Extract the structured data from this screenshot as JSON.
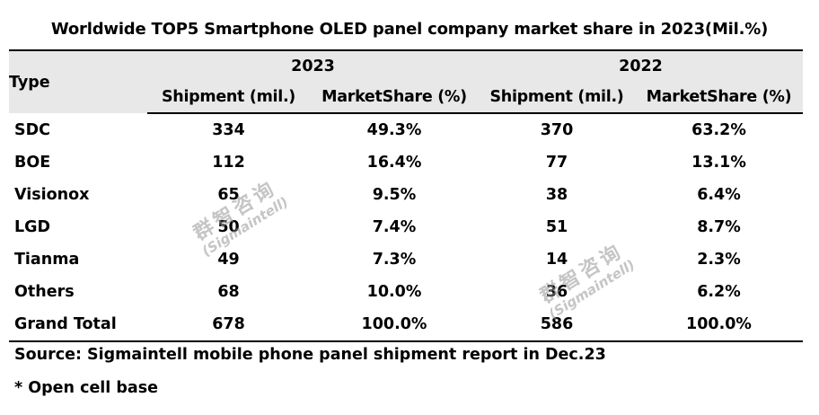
{
  "chart_data": {
    "type": "table",
    "title": "Worldwide TOP5 Smartphone OLED panel company market share in 2023(Mil.%)",
    "row_header": "Type",
    "years": [
      "2023",
      "2022"
    ],
    "subcolumns": [
      "Shipment (mil.)",
      "MarketShare (%)"
    ],
    "rows": [
      {
        "type": "SDC",
        "ship_2023": "334",
        "share_2023": "49.3%",
        "ship_2022": "370",
        "share_2022": "63.2%"
      },
      {
        "type": "BOE",
        "ship_2023": "112",
        "share_2023": "16.4%",
        "ship_2022": "77",
        "share_2022": "13.1%"
      },
      {
        "type": "Visionox",
        "ship_2023": "65",
        "share_2023": "9.5%",
        "ship_2022": "38",
        "share_2022": "6.4%"
      },
      {
        "type": "LGD",
        "ship_2023": "50",
        "share_2023": "7.4%",
        "ship_2022": "51",
        "share_2022": "8.7%"
      },
      {
        "type": "Tianma",
        "ship_2023": "49",
        "share_2023": "7.3%",
        "ship_2022": "14",
        "share_2022": "2.3%"
      },
      {
        "type": "Others",
        "ship_2023": "68",
        "share_2023": "10.0%",
        "ship_2022": "36",
        "share_2022": "6.2%"
      },
      {
        "type": "Grand Total",
        "ship_2023": "678",
        "share_2023": "100.0%",
        "ship_2022": "586",
        "share_2022": "100.0%"
      }
    ],
    "source": "Source: Sigmaintell mobile phone panel shipment report in Dec.23",
    "note": "* Open cell base"
  },
  "watermark": {
    "cn": "群智咨询",
    "en": "(Sigmaintell)"
  },
  "colors": {
    "header_bg": "#e8e8e8",
    "rule": "#000000"
  }
}
